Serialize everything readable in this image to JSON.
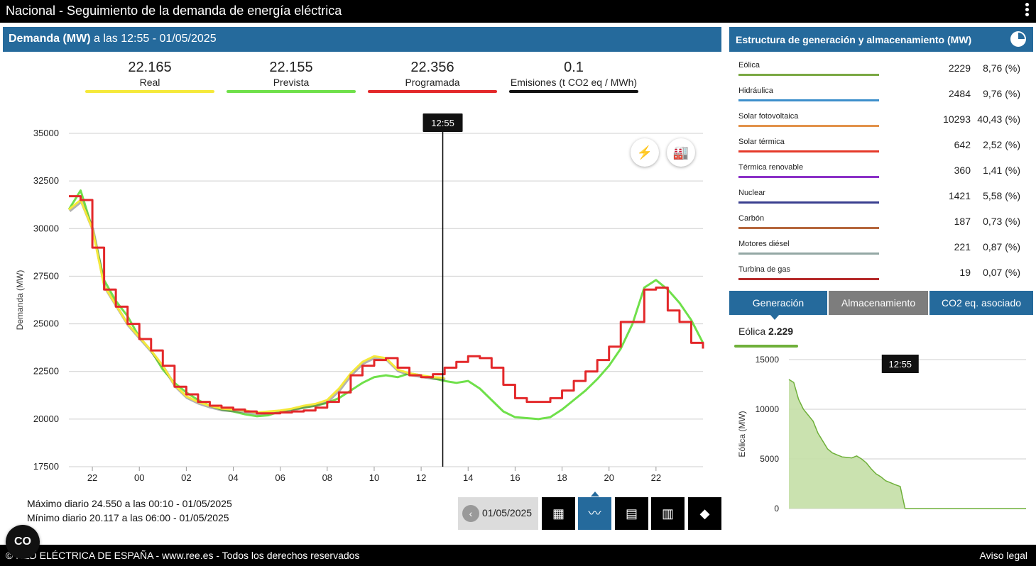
{
  "header": {
    "title": "Nacional  -  Seguimiento de la demanda de energía eléctrica"
  },
  "demand_panel": {
    "title_bold": "Demanda (MW)",
    "title_rest": " a las 12:55 - 01/05/2025"
  },
  "kpis": [
    {
      "value": "22.165",
      "label": "Real",
      "color": "#f5e93a"
    },
    {
      "value": "22.155",
      "label": "Prevista",
      "color": "#6fe04a"
    },
    {
      "value": "22.356",
      "label": "Programada",
      "color": "#e3282a"
    },
    {
      "value": "0.1",
      "label": "Emisiones (t CO2 eq / MWh)",
      "color": "#111111"
    }
  ],
  "chart_data": [
    {
      "type": "line",
      "ylabel": "Demanda (MW)",
      "ylim": [
        17500,
        35000
      ],
      "yticks": [
        "35000",
        "32500",
        "30000",
        "27500",
        "25000",
        "22500",
        "20000",
        "17500"
      ],
      "xticks": [
        "22",
        "00",
        "02",
        "04",
        "06",
        "08",
        "10",
        "12",
        "14",
        "16",
        "18",
        "20",
        "22"
      ],
      "x_hours": [
        -3,
        -2.5,
        -2,
        -1.5,
        -1,
        -0.5,
        0,
        0.5,
        1,
        1.5,
        2,
        2.5,
        3,
        3.5,
        4,
        4.5,
        5,
        5.5,
        6,
        6.5,
        7,
        7.5,
        8,
        8.5,
        9,
        9.5,
        10,
        10.5,
        11,
        11.5,
        12,
        12.5,
        13,
        13.5,
        14,
        14.5,
        15,
        15.5,
        16,
        16.5,
        17,
        17.5,
        18,
        18.5,
        19,
        19.5,
        20,
        20.5,
        21,
        21.5,
        22,
        22.5,
        23,
        23.5,
        24
      ],
      "cursor_label": "12:55",
      "cursor_hour": 12.92,
      "series": [
        {
          "name": "Prevista",
          "color": "#6fe04a",
          "values": [
            31000,
            32000,
            30000,
            27300,
            26200,
            25400,
            24300,
            23600,
            22600,
            21900,
            21400,
            21000,
            20700,
            20500,
            20400,
            20250,
            20150,
            20200,
            20400,
            20500,
            20600,
            20700,
            20850,
            21100,
            21500,
            21900,
            22200,
            22300,
            22200,
            22400,
            22300,
            22150,
            22000,
            21900,
            22000,
            21600,
            21000,
            20400,
            20100,
            20050,
            20000,
            20100,
            20500,
            21000,
            21500,
            22100,
            22800,
            23700,
            25000,
            26900,
            27300,
            26800,
            26100,
            25200,
            24000
          ]
        },
        {
          "name": "Real",
          "color": "#f5e93a",
          "values": [
            31000,
            31500,
            30000,
            27000,
            26000,
            25000,
            24300,
            23600,
            22800,
            21800,
            21200,
            20900,
            20700,
            20550,
            20500,
            20450,
            20350,
            20400,
            20450,
            20550,
            20700,
            20800,
            21000,
            21600,
            22400,
            23000,
            23300,
            23200,
            22600,
            22400,
            22300,
            22200,
            22165
          ]
        },
        {
          "name": "Programada",
          "color": "#e3282a",
          "values": [
            31700,
            31500,
            29000,
            26800,
            25900,
            25000,
            24200,
            23600,
            22800,
            21700,
            21300,
            20900,
            20700,
            20600,
            20500,
            20400,
            20300,
            20300,
            20350,
            20400,
            20450,
            20600,
            20900,
            21400,
            22300,
            22800,
            23100,
            23200,
            22700,
            22300,
            22200,
            22356,
            22700,
            23000,
            23300,
            23200,
            22700,
            21800,
            21100,
            20900,
            20900,
            21100,
            21500,
            22000,
            22500,
            23100,
            23800,
            25100,
            25100,
            26800,
            26900,
            25700,
            25100,
            24000,
            23700
          ]
        }
      ]
    },
    {
      "type": "area",
      "ylabel": "Eólica (MW)",
      "ylim": [
        0,
        15000
      ],
      "yticks": [
        "15000",
        "10000",
        "5000",
        "0"
      ],
      "cursor_label": "12:55",
      "color": "#6fb03a",
      "series": [
        {
          "name": "Eólica",
          "values": [
            13000,
            12700,
            11000,
            10000,
            9400,
            8800,
            7600,
            6800,
            6000,
            5600,
            5400,
            5200,
            5150,
            5100,
            5300,
            5000,
            4600,
            4000,
            3500,
            3200,
            2800,
            2600,
            2400,
            2229,
            0,
            0,
            0,
            0,
            0,
            0,
            0,
            0,
            0,
            0,
            0,
            0,
            0,
            0,
            0,
            0,
            0,
            0,
            0,
            0,
            0,
            0,
            0,
            0,
            0,
            0
          ]
        }
      ]
    }
  ],
  "stats": {
    "max": "Máximo diario 24.550 a las 00:10 - 01/05/2025",
    "min": "Mínimo diario 20.117 a las 06:00 - 01/05/2025"
  },
  "controls": {
    "date": "01/05/2025",
    "prev_icon": "chevron-left-icon"
  },
  "generation_panel": {
    "title": "Estructura de generación y almacenamiento (MW)"
  },
  "generation": [
    {
      "name": "Eólica",
      "value": "2229",
      "pct": "8,76 (%)",
      "color": "#7aa843"
    },
    {
      "name": "Hidráulica",
      "value": "2484",
      "pct": "9,76 (%)",
      "color": "#3d8fcb"
    },
    {
      "name": "Solar fotovoltaica",
      "value": "10293",
      "pct": "40,43 (%)",
      "color": "#e2924a"
    },
    {
      "name": "Solar térmica",
      "value": "642",
      "pct": "2,52 (%)",
      "color": "#e53a2a"
    },
    {
      "name": "Térmica renovable",
      "value": "360",
      "pct": "1,41 (%)",
      "color": "#8b30c7"
    },
    {
      "name": "Nuclear",
      "value": "1421",
      "pct": "5,58 (%)",
      "color": "#3a3f8f"
    },
    {
      "name": "Carbón",
      "value": "187",
      "pct": "0,73 (%)",
      "color": "#b5673d"
    },
    {
      "name": "Motores diésel",
      "value": "221",
      "pct": "0,87 (%)",
      "color": "#93a7a4"
    },
    {
      "name": "Turbina de gas",
      "value": "19",
      "pct": "0,07 (%)",
      "color": "#b52a2a"
    }
  ],
  "tabs": [
    "Generación",
    "Almacenamiento",
    "CO2 eq. asociado"
  ],
  "selection": {
    "name": "Eólica",
    "value": "2.229"
  },
  "footer": {
    "copyright": "© RED ELÉCTRICA DE ESPAÑA - www.ree.es - Todos los derechos reservados",
    "legal": "Aviso legal"
  }
}
